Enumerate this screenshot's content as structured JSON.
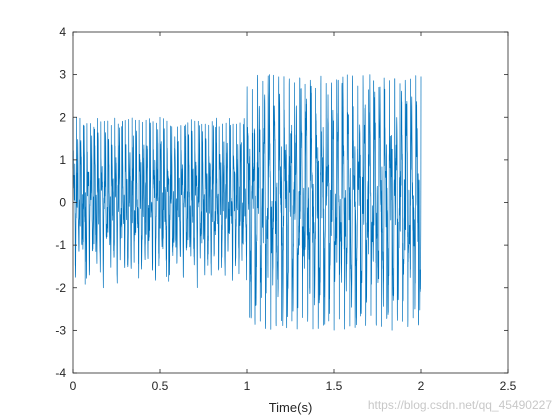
{
  "chart_data": {
    "type": "line",
    "title": "",
    "xlabel": "Time(s)",
    "ylabel": "",
    "xlim": [
      0,
      2.5
    ],
    "ylim": [
      -4,
      4
    ],
    "x_ticks": [
      0,
      0.5,
      1,
      1.5,
      2,
      2.5
    ],
    "x_tick_labels": [
      "0",
      "0.5",
      "1",
      "1.5",
      "2",
      "2.5"
    ],
    "y_ticks": [
      -4,
      -3,
      -2,
      -1,
      0,
      1,
      2,
      3,
      4
    ],
    "y_tick_labels": [
      "-4",
      "-3",
      "-2",
      "-1",
      "0",
      "1",
      "2",
      "3",
      "4"
    ],
    "grid": false,
    "legend": "none",
    "series": [
      {
        "color": "#0072BD",
        "segments": [
          {
            "x_start": 0.0,
            "x_end": 1.0,
            "peak_max": 2.0,
            "peak_min": -2.0
          },
          {
            "x_start": 1.0,
            "x_end": 2.0,
            "peak_max": 3.0,
            "peak_min": -3.0
          }
        ]
      }
    ]
  },
  "watermark": "https://blog.csdn.net/qq_45490227"
}
